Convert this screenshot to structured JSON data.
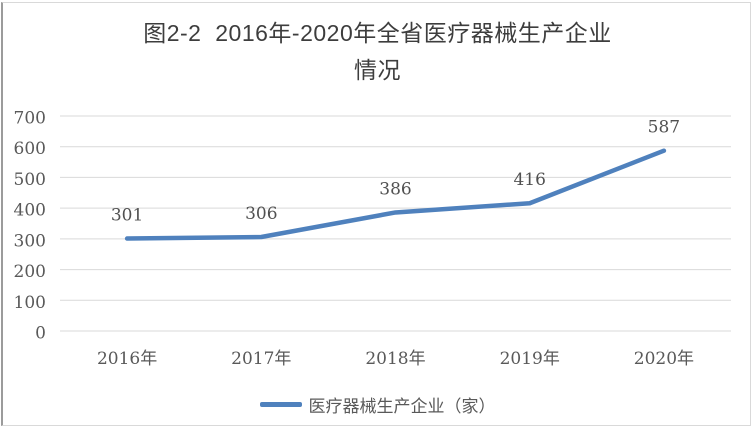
{
  "colors": {
    "background": "#ffffff",
    "accent_line": "#4f81bd",
    "gridline": "#d9d9d9",
    "axis_text": "#595959",
    "title_text": "#3d3d3d",
    "data_label_text": "#515151",
    "frame_border": "#d9d9d9",
    "frame_border_left": "#9b9b9b"
  },
  "chart_data": {
    "type": "line",
    "title": "图2-2  2016年-2020年全省医疗器械生产企业情况",
    "title_lines": [
      "图2-2  2016年-2020年全省医疗器械生产企业",
      "情况"
    ],
    "categories": [
      "2016年",
      "2017年",
      "2018年",
      "2019年",
      "2020年"
    ],
    "series": [
      {
        "name": "医疗器械生产企业（家）",
        "values": [
          301,
          306,
          386,
          416,
          587
        ],
        "color": "#4f81bd"
      }
    ],
    "data_labels": [
      "301",
      "306",
      "386",
      "416",
      "587"
    ],
    "xlabel": "",
    "ylabel": "",
    "ylim": [
      0,
      700
    ],
    "yticks": [
      0,
      100,
      200,
      300,
      400,
      500,
      600,
      700
    ],
    "grid": "horizontal",
    "legend_position": "bottom"
  }
}
